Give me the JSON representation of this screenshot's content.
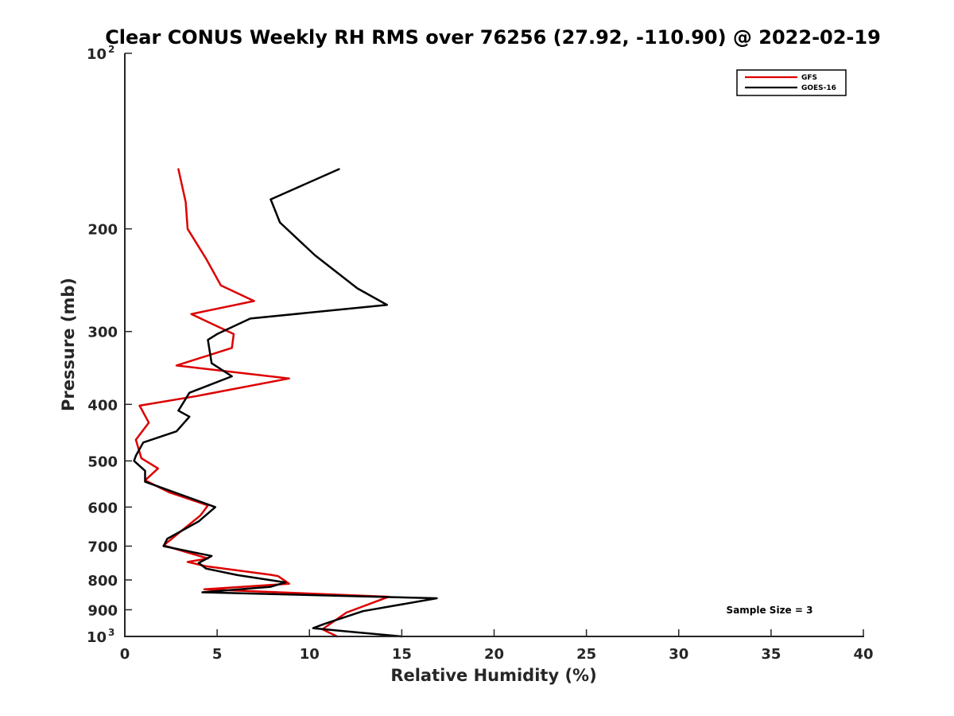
{
  "chart_data": {
    "type": "line",
    "title": "Clear CONUS Weekly RH RMS over 76256 (27.92, -110.90) @ 2022-02-19",
    "xlabel": "Relative Humidity (%)",
    "ylabel": "Pressure (mb)",
    "xlim": [
      0,
      40
    ],
    "ylim": [
      100,
      1000
    ],
    "y_scale": "log",
    "y_reversed": true,
    "grid": false,
    "legend_position": "top-right",
    "x_ticks": [
      0,
      5,
      10,
      15,
      20,
      25,
      30,
      35,
      40
    ],
    "x_tick_labels": [
      "0",
      "5",
      "10",
      "15",
      "20",
      "25",
      "30",
      "35",
      "40"
    ],
    "y_ticks": [
      200,
      300,
      400,
      500,
      600,
      700,
      800,
      900
    ],
    "y_tick_labels": [
      "200",
      "300",
      "400",
      "500",
      "600",
      "700",
      "800",
      "900"
    ],
    "y_power_ticks": [
      {
        "value": 100,
        "base": "10",
        "exp": "2"
      },
      {
        "value": 1000,
        "base": "10",
        "exp": "3"
      }
    ],
    "annotation": "Sample Size = 3",
    "series": [
      {
        "name": "GFS",
        "color": "#dd0000",
        "points": [
          [
            2.9,
            158
          ],
          [
            3.3,
            180
          ],
          [
            3.4,
            200
          ],
          [
            4.4,
            225
          ],
          [
            5.2,
            250
          ],
          [
            7.0,
            266
          ],
          [
            3.6,
            280
          ],
          [
            5.9,
            303
          ],
          [
            5.8,
            320
          ],
          [
            2.8,
            343
          ],
          [
            8.9,
            361
          ],
          [
            3.9,
            387
          ],
          [
            0.8,
            402
          ],
          [
            1.3,
            430
          ],
          [
            0.6,
            460
          ],
          [
            0.9,
            495
          ],
          [
            1.8,
            515
          ],
          [
            1.1,
            540
          ],
          [
            2.4,
            566
          ],
          [
            4.5,
            596
          ],
          [
            4.1,
            620
          ],
          [
            2.1,
            698
          ],
          [
            4.5,
            735
          ],
          [
            3.4,
            745
          ],
          [
            4.4,
            758
          ],
          [
            7.9,
            784
          ],
          [
            8.3,
            788
          ],
          [
            8.9,
            812
          ],
          [
            4.3,
            830
          ],
          [
            14.3,
            855
          ],
          [
            12.0,
            910
          ],
          [
            10.7,
            972
          ],
          [
            11.5,
            1000
          ]
        ]
      },
      {
        "name": "GOES-16",
        "color": "#000000",
        "points": [
          [
            11.6,
            158
          ],
          [
            7.9,
            178
          ],
          [
            8.4,
            195
          ],
          [
            10.3,
            222
          ],
          [
            12.6,
            253
          ],
          [
            14.2,
            270
          ],
          [
            6.8,
            285
          ],
          [
            5.0,
            303
          ],
          [
            4.5,
            310
          ],
          [
            4.7,
            340
          ],
          [
            5.8,
            358
          ],
          [
            3.5,
            382
          ],
          [
            2.9,
            410
          ],
          [
            3.5,
            420
          ],
          [
            2.8,
            445
          ],
          [
            1.0,
            465
          ],
          [
            0.6,
            490
          ],
          [
            0.5,
            500
          ],
          [
            1.1,
            520
          ],
          [
            1.1,
            543
          ],
          [
            4.9,
            600
          ],
          [
            4.0,
            635
          ],
          [
            2.3,
            680
          ],
          [
            2.1,
            700
          ],
          [
            4.7,
            728
          ],
          [
            4.0,
            748
          ],
          [
            4.4,
            765
          ],
          [
            6.1,
            785
          ],
          [
            8.7,
            808
          ],
          [
            7.9,
            822
          ],
          [
            4.2,
            840
          ],
          [
            16.9,
            860
          ],
          [
            12.9,
            905
          ],
          [
            10.8,
            952
          ],
          [
            10.2,
            968
          ],
          [
            12.0,
            980
          ],
          [
            15.0,
            1000
          ]
        ]
      }
    ]
  }
}
